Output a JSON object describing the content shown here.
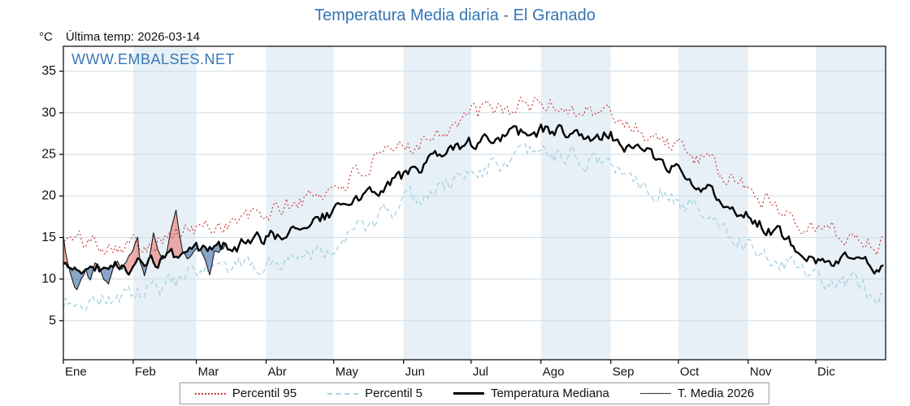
{
  "chart_data": {
    "type": "line",
    "title": "Temperatura Media diaria - El Granado",
    "unit": "°C",
    "annotation_last_temp": "Última temp: 2026-03-14",
    "watermark": "WWW.EMBALSES.NET",
    "x_tick_labels": [
      "Ene",
      "Feb",
      "Mar",
      "Abr",
      "May",
      "Jun",
      "Jul",
      "Ago",
      "Sep",
      "Oct",
      "Nov",
      "Dic"
    ],
    "month_lengths": [
      31,
      28,
      31,
      30,
      31,
      30,
      31,
      31,
      30,
      31,
      30,
      31
    ],
    "yticks": [
      5,
      10,
      15,
      20,
      25,
      30,
      35
    ],
    "ylim": [
      0.3,
      38
    ],
    "grid": true,
    "legend_position": "bottom",
    "band_colors": {
      "plain": "#ffffff",
      "shaded": "#e7f0f7"
    },
    "grid_color": "#ccdce6",
    "title_color": "#3474b4",
    "series": [
      {
        "name": "Percentil 95",
        "color": "#cc3b3b",
        "dash": "dotted",
        "width": 1.2,
        "noise_amp": 1.0,
        "monthly_start_values": [
          14.8,
          14.2,
          16.0,
          17.8,
          21.0,
          25.8,
          29.8,
          31.2,
          29.8,
          25.8,
          20.8,
          16.2,
          14.2
        ]
      },
      {
        "name": "Percentil 5",
        "color": "#a5d0e2",
        "dash": "dashed",
        "width": 1.3,
        "noise_amp": 1.0,
        "monthly_start_values": [
          7.2,
          8.0,
          10.4,
          11.8,
          14.2,
          18.8,
          22.8,
          25.2,
          23.8,
          19.5,
          14.2,
          10.2,
          8.2
        ]
      },
      {
        "name": "Temperatura Mediana",
        "color": "#000000",
        "dash": "solid",
        "width": 2.4,
        "noise_amp": 0.7,
        "monthly_start_values": [
          11.2,
          11.5,
          13.2,
          14.8,
          18.0,
          22.5,
          26.2,
          28.0,
          27.2,
          23.0,
          17.5,
          12.8,
          11.2
        ]
      },
      {
        "name": "T. Media 2026",
        "color": "#1a1a1a",
        "dash": "solid",
        "width": 1.1,
        "noise_amp": 0.25,
        "fill_above_color": "rgba(235,120,110,0.6)",
        "fill_below_color": "rgba(70,115,170,0.65)",
        "fill_vs": "Temperatura Mediana",
        "daily_points": [
          [
            0,
            15.2
          ],
          [
            1,
            13.0
          ],
          [
            3,
            11.0
          ],
          [
            5,
            9.0
          ],
          [
            6,
            8.6
          ],
          [
            8,
            10.2
          ],
          [
            10,
            11.0
          ],
          [
            12,
            9.8
          ],
          [
            14,
            12.0
          ],
          [
            16,
            11.3
          ],
          [
            18,
            9.8
          ],
          [
            20,
            9.4
          ],
          [
            22,
            11.2
          ],
          [
            24,
            12.3
          ],
          [
            26,
            11.0
          ],
          [
            28,
            12.2
          ],
          [
            31,
            13.6
          ],
          [
            33,
            15.2
          ],
          [
            34,
            12.0
          ],
          [
            36,
            10.4
          ],
          [
            38,
            12.0
          ],
          [
            40,
            15.6
          ],
          [
            42,
            13.2
          ],
          [
            44,
            12.2
          ],
          [
            46,
            13.4
          ],
          [
            48,
            16.0
          ],
          [
            50,
            18.2
          ],
          [
            51,
            16.5
          ],
          [
            53,
            13.2
          ],
          [
            55,
            12.4
          ],
          [
            57,
            13.0
          ],
          [
            59,
            13.4
          ],
          [
            61,
            13.2
          ],
          [
            63,
            12.2
          ],
          [
            65,
            10.8
          ],
          [
            67,
            13.2
          ],
          [
            69,
            13.4
          ],
          [
            71,
            13.8
          ],
          [
            72,
            14.6
          ]
        ]
      }
    ]
  }
}
